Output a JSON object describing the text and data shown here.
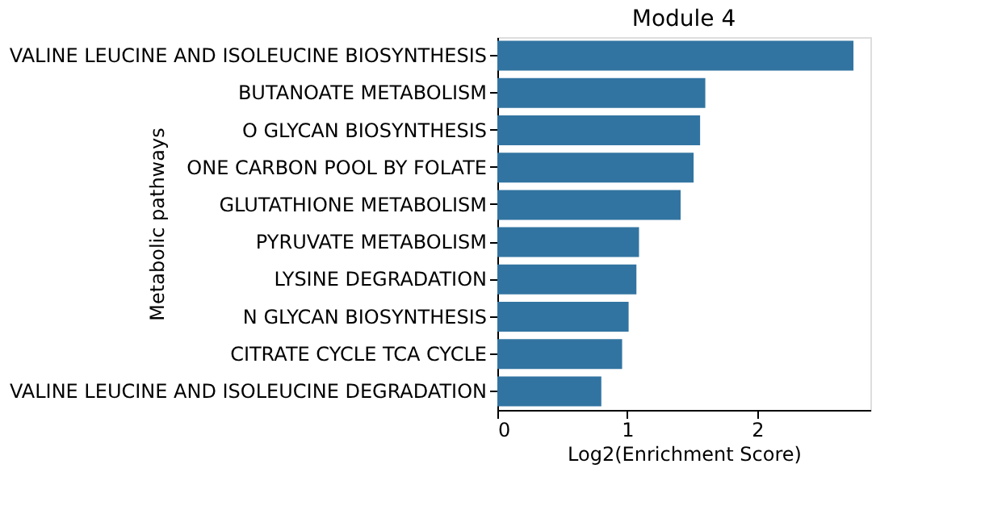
{
  "chart_data": {
    "type": "bar",
    "orientation": "horizontal",
    "title": "Module 4",
    "xlabel": "Log2(Enrichment Score)",
    "ylabel": "Metabolic pathways",
    "categories": [
      "VALINE LEUCINE AND ISOLEUCINE BIOSYNTHESIS",
      "BUTANOATE METABOLISM",
      "O GLYCAN BIOSYNTHESIS",
      "ONE CARBON POOL BY FOLATE",
      "GLUTATHIONE METABOLISM",
      "PYRUVATE METABOLISM",
      "LYSINE DEGRADATION",
      "N GLYCAN BIOSYNTHESIS",
      "CITRATE CYCLE TCA CYCLE",
      "VALINE LEUCINE AND ISOLEUCINE DEGRADATION"
    ],
    "values": [
      2.74,
      1.6,
      1.56,
      1.51,
      1.41,
      1.09,
      1.07,
      1.01,
      0.96,
      0.8
    ],
    "color": "#3274a1",
    "xlim": [
      0,
      2.87
    ],
    "xticks": [
      0,
      1,
      2
    ],
    "grid": false
  }
}
